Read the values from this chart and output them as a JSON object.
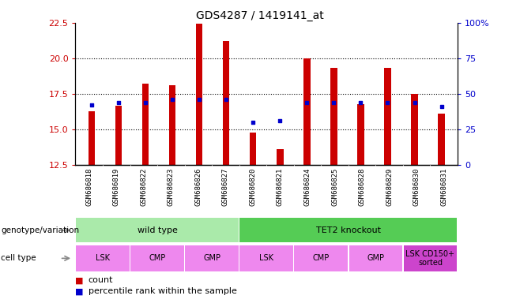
{
  "title": "GDS4287 / 1419141_at",
  "samples": [
    "GSM686818",
    "GSM686819",
    "GSM686822",
    "GSM686823",
    "GSM686826",
    "GSM686827",
    "GSM686820",
    "GSM686821",
    "GSM686824",
    "GSM686825",
    "GSM686828",
    "GSM686829",
    "GSM686830",
    "GSM686831"
  ],
  "counts": [
    16.3,
    16.65,
    18.25,
    18.1,
    22.45,
    21.2,
    14.8,
    13.6,
    20.0,
    19.35,
    16.8,
    19.35,
    17.5,
    16.1
  ],
  "percentiles_raw": [
    42,
    44,
    44,
    46,
    46,
    46,
    30,
    31,
    44,
    44,
    44,
    44,
    44,
    41
  ],
  "ylim_left": [
    12.5,
    22.5
  ],
  "ylim_right": [
    0,
    100
  ],
  "yticks_left": [
    12.5,
    15.0,
    17.5,
    20.0,
    22.5
  ],
  "yticks_right": [
    0,
    25,
    50,
    75,
    100
  ],
  "bar_color": "#cc0000",
  "dot_color": "#0000cc",
  "bar_bottom": 12.5,
  "bar_width": 0.25,
  "genotype_groups": [
    {
      "label": "wild type",
      "start": 0,
      "end": 6,
      "color": "#aaeaaa"
    },
    {
      "label": "TET2 knockout",
      "start": 6,
      "end": 14,
      "color": "#55cc55"
    }
  ],
  "cell_type_groups": [
    {
      "label": "LSK",
      "start": 0,
      "end": 2
    },
    {
      "label": "CMP",
      "start": 2,
      "end": 4
    },
    {
      "label": "GMP",
      "start": 4,
      "end": 6
    },
    {
      "label": "LSK",
      "start": 6,
      "end": 8
    },
    {
      "label": "CMP",
      "start": 8,
      "end": 10
    },
    {
      "label": "GMP",
      "start": 10,
      "end": 12
    },
    {
      "label": "LSK CD150+\nsorted",
      "start": 12,
      "end": 14
    }
  ],
  "cell_type_color_normal": "#ee88ee",
  "cell_type_color_special": "#cc44cc",
  "sample_bg_color": "#c8c8c8",
  "tick_color_left": "#cc0000",
  "tick_color_right": "#0000cc",
  "grid_yticks": [
    15.0,
    17.5,
    20.0
  ]
}
